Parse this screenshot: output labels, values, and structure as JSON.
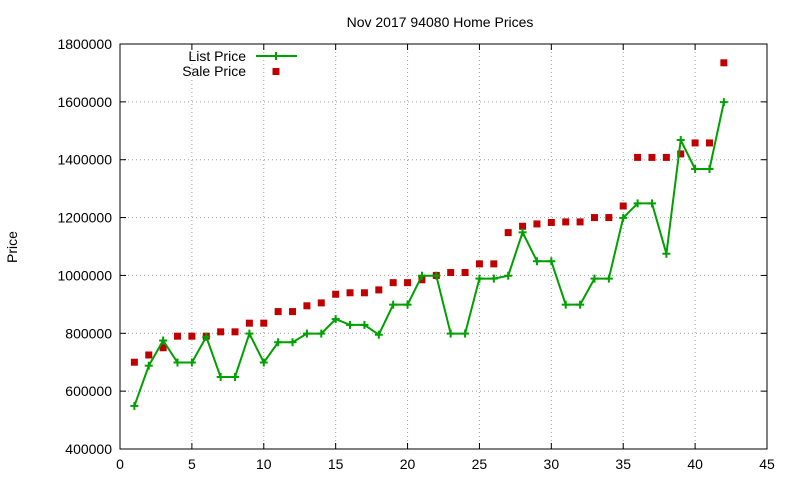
{
  "chart_data": {
    "type": "line",
    "title": "Nov 2017 94080 Home Prices",
    "xlabel": "",
    "ylabel": "Price",
    "xlim": [
      0,
      45
    ],
    "ylim": [
      400000,
      1800000
    ],
    "xticks": [
      0,
      5,
      10,
      15,
      20,
      25,
      30,
      35,
      40,
      45
    ],
    "yticks": [
      400000,
      600000,
      800000,
      1000000,
      1200000,
      1400000,
      1600000,
      1800000
    ],
    "grid": true,
    "legend_position": "top-left",
    "series": [
      {
        "name": "List Price",
        "style": "line-with-plus-markers",
        "color": "#00a000",
        "x": [
          1,
          2,
          3,
          4,
          5,
          6,
          7,
          8,
          9,
          10,
          11,
          12,
          13,
          14,
          15,
          16,
          17,
          18,
          19,
          20,
          21,
          22,
          23,
          24,
          25,
          26,
          27,
          28,
          29,
          30,
          31,
          32,
          33,
          34,
          35,
          36,
          37,
          38,
          39,
          40,
          41,
          42
        ],
        "y": [
          549000,
          688000,
          775000,
          699000,
          699000,
          788000,
          649000,
          649000,
          799000,
          699000,
          769000,
          769000,
          799000,
          799000,
          849000,
          829000,
          829000,
          795000,
          899000,
          899000,
          999000,
          999000,
          799000,
          799000,
          989000,
          989000,
          999000,
          1149000,
          1049000,
          1049000,
          899000,
          899000,
          989000,
          989000,
          1199000,
          1249000,
          1249000,
          1075000,
          1468000,
          1368000,
          1368000,
          1599000
        ]
      },
      {
        "name": "Sale Price",
        "style": "square-markers",
        "color": "#c00000",
        "x": [
          1,
          2,
          3,
          4,
          5,
          6,
          7,
          8,
          9,
          10,
          11,
          12,
          13,
          14,
          15,
          16,
          17,
          18,
          19,
          20,
          21,
          22,
          23,
          24,
          25,
          26,
          27,
          28,
          29,
          30,
          31,
          32,
          33,
          34,
          35,
          36,
          37,
          38,
          39,
          40,
          41,
          42
        ],
        "y": [
          700000,
          725000,
          750000,
          790000,
          790000,
          790000,
          805000,
          805000,
          835000,
          835000,
          875000,
          875000,
          895000,
          905000,
          935000,
          940000,
          940000,
          950000,
          975000,
          975000,
          985000,
          1000000,
          1010000,
          1010000,
          1040000,
          1040000,
          1148000,
          1170000,
          1178000,
          1183000,
          1185000,
          1185000,
          1200000,
          1200000,
          1240000,
          1408000,
          1408000,
          1408000,
          1420000,
          1458000,
          1458000,
          1735000
        ]
      }
    ]
  }
}
